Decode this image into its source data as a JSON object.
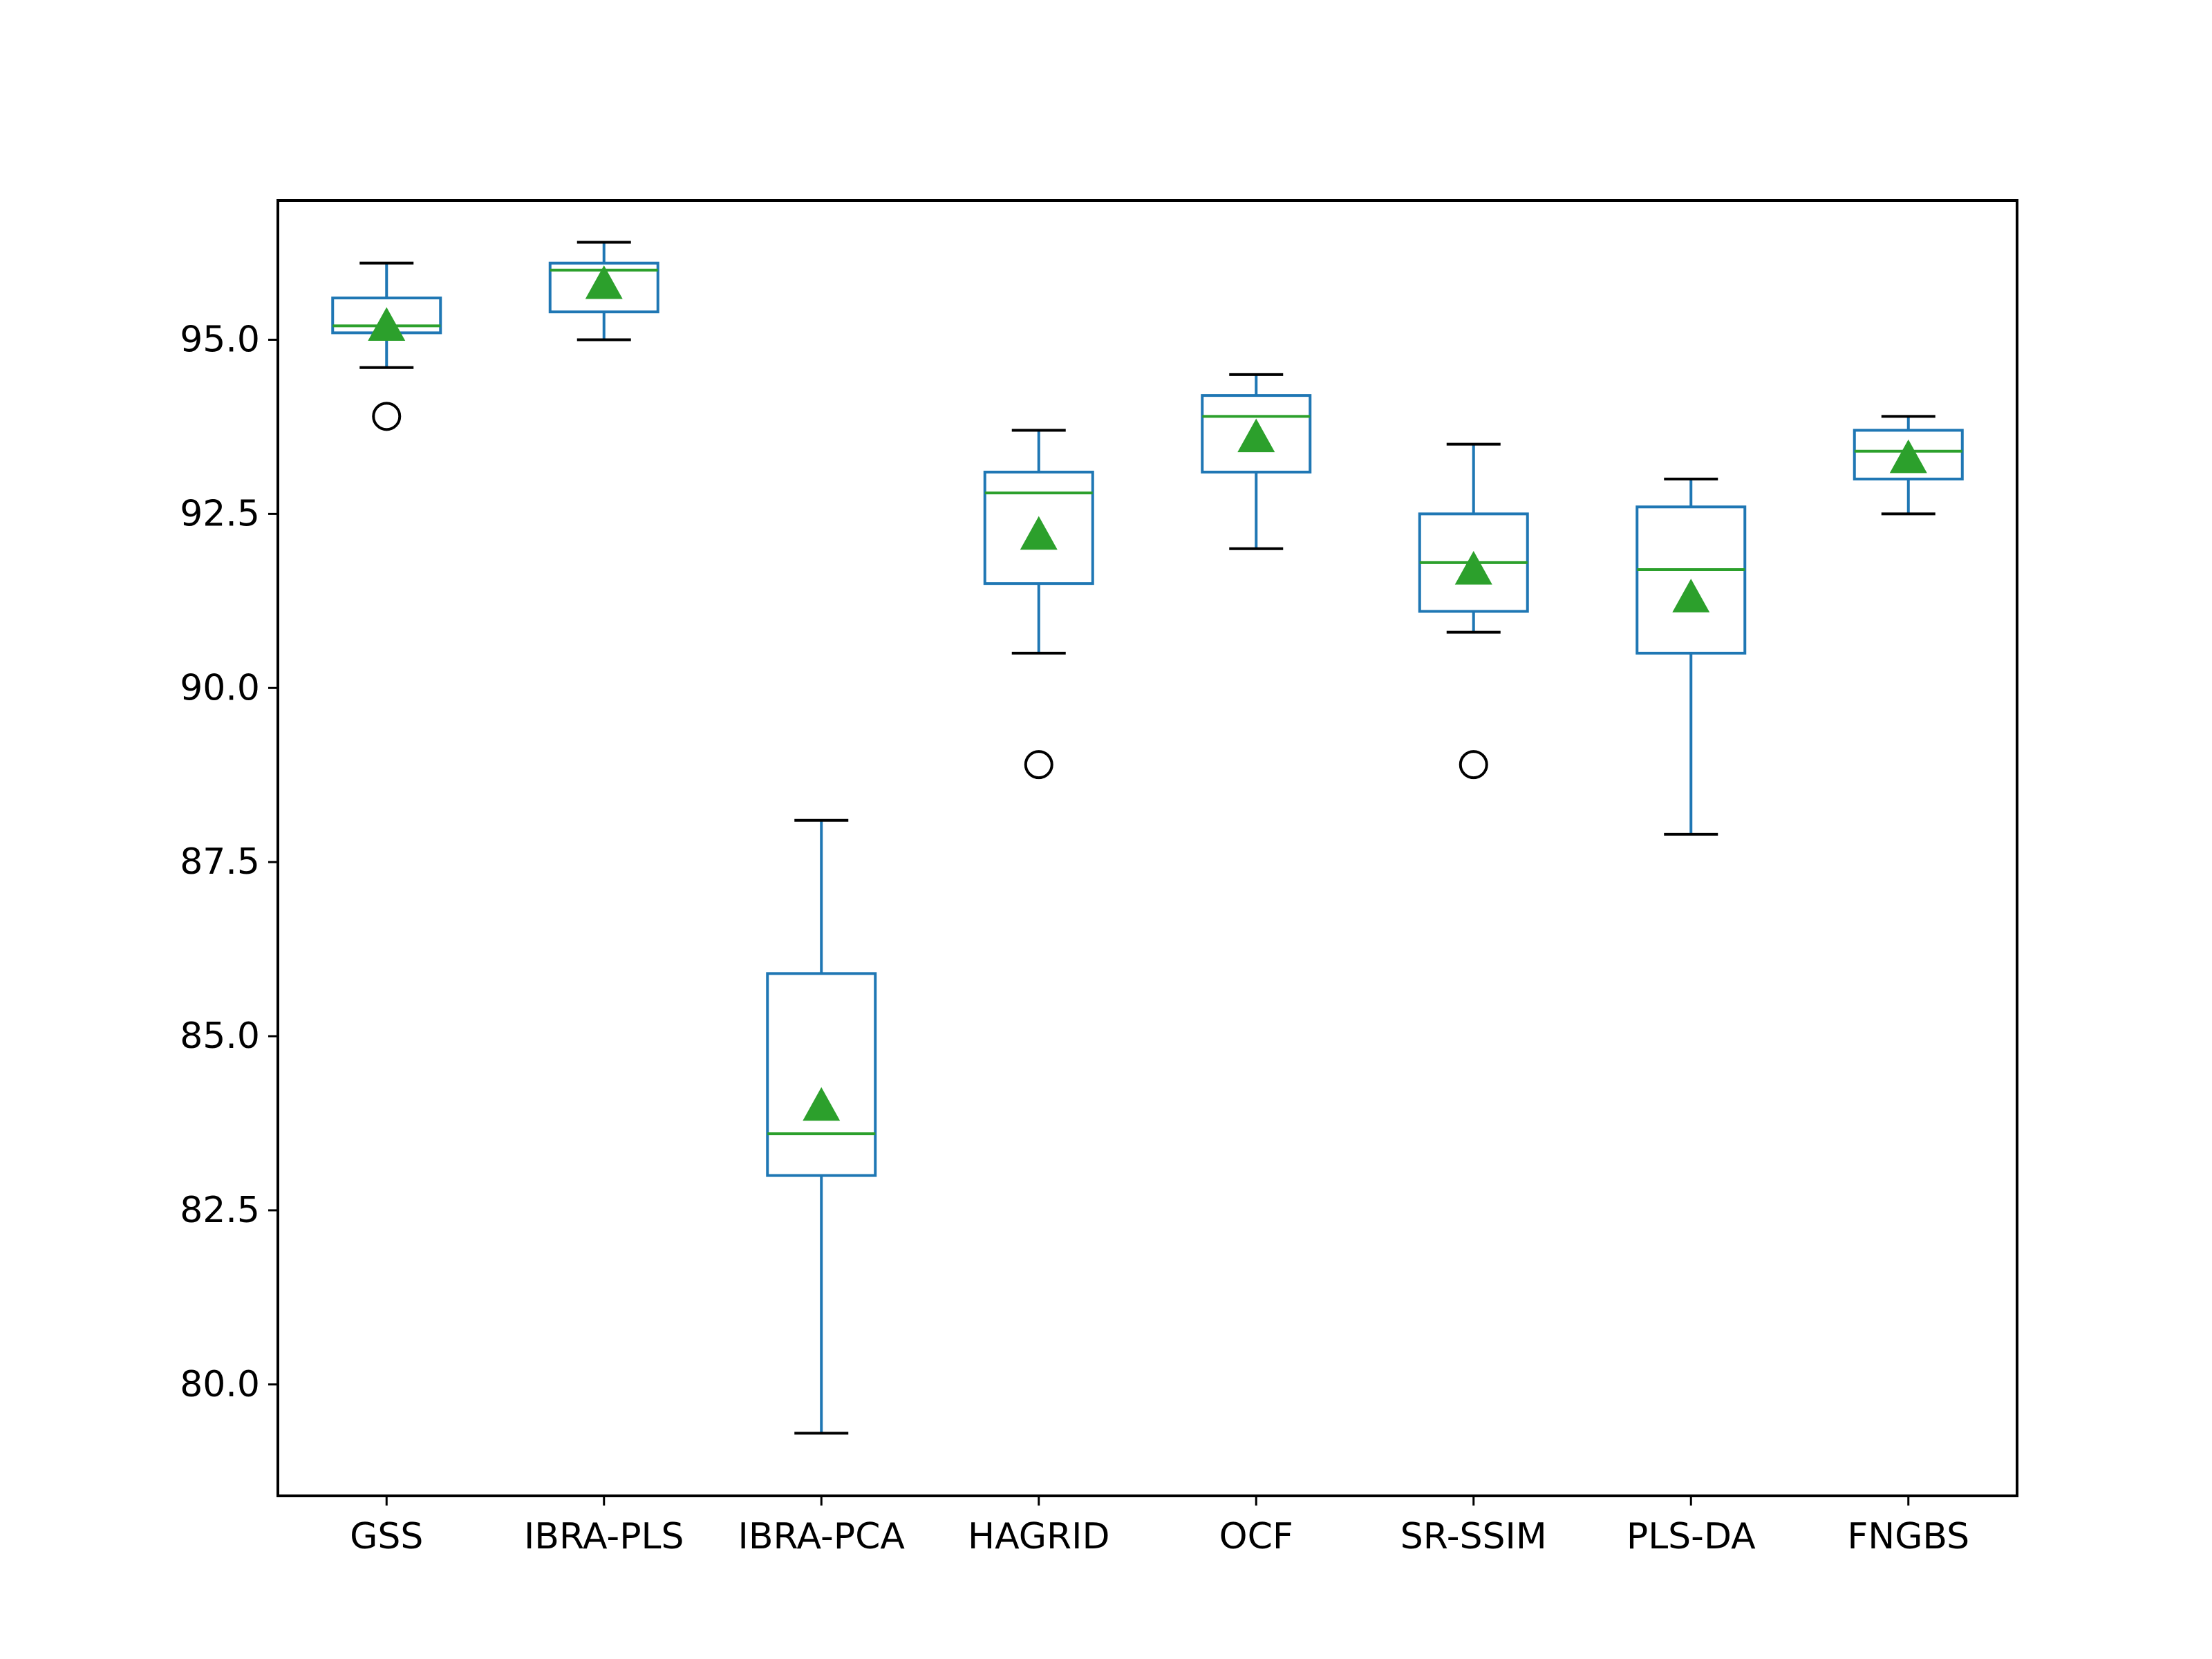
{
  "chart_data": {
    "type": "box",
    "title": "",
    "xlabel": "",
    "ylabel": "",
    "ylim": [
      78.4,
      97.0
    ],
    "yticks": [
      80.0,
      82.5,
      85.0,
      87.5,
      90.0,
      92.5,
      95.0
    ],
    "ytick_labels": [
      "80.0",
      "82.5",
      "85.0",
      "87.5",
      "90.0",
      "92.5",
      "95.0"
    ],
    "grid": false,
    "legend": "none",
    "colors": {
      "box": "#1f77b4",
      "median": "#2ca02c",
      "mean_marker": "#2ca02c",
      "whisker_cap": "#000000",
      "flier": "#000000"
    },
    "categories": [
      "GSS",
      "IBRA-PLS",
      "IBRA-PCA",
      "HAGRID",
      "OCF",
      "SR-SSIM",
      "PLS-DA",
      "FNGBS"
    ],
    "boxes": [
      {
        "category": "GSS",
        "whisker_low": 94.6,
        "q1": 95.1,
        "median": 95.2,
        "q3": 95.6,
        "whisker_high": 96.1,
        "mean": 95.2,
        "fliers": [
          93.9
        ]
      },
      {
        "category": "IBRA-PLS",
        "whisker_low": 95.0,
        "q1": 95.4,
        "median": 96.0,
        "q3": 96.1,
        "whisker_high": 96.4,
        "mean": 95.8,
        "fliers": []
      },
      {
        "category": "IBRA-PCA",
        "whisker_low": 79.3,
        "q1": 83.0,
        "median": 83.6,
        "q3": 85.9,
        "whisker_high": 88.1,
        "mean": 84.0,
        "fliers": []
      },
      {
        "category": "HAGRID",
        "whisker_low": 90.5,
        "q1": 91.5,
        "median": 92.8,
        "q3": 93.1,
        "whisker_high": 93.7,
        "mean": 92.2,
        "fliers": [
          88.9
        ]
      },
      {
        "category": "OCF",
        "whisker_low": 92.0,
        "q1": 93.1,
        "median": 93.9,
        "q3": 94.2,
        "whisker_high": 94.5,
        "mean": 93.6,
        "fliers": []
      },
      {
        "category": "SR-SSIM",
        "whisker_low": 90.8,
        "q1": 91.1,
        "median": 91.8,
        "q3": 92.5,
        "whisker_high": 93.5,
        "mean": 91.7,
        "fliers": [
          88.9
        ]
      },
      {
        "category": "PLS-DA",
        "whisker_low": 87.9,
        "q1": 90.5,
        "median": 91.7,
        "q3": 92.6,
        "whisker_high": 93.0,
        "mean": 91.3,
        "fliers": []
      },
      {
        "category": "FNGBS",
        "whisker_low": 92.5,
        "q1": 93.0,
        "median": 93.4,
        "q3": 93.7,
        "whisker_high": 93.9,
        "mean": 93.3,
        "fliers": []
      }
    ]
  }
}
